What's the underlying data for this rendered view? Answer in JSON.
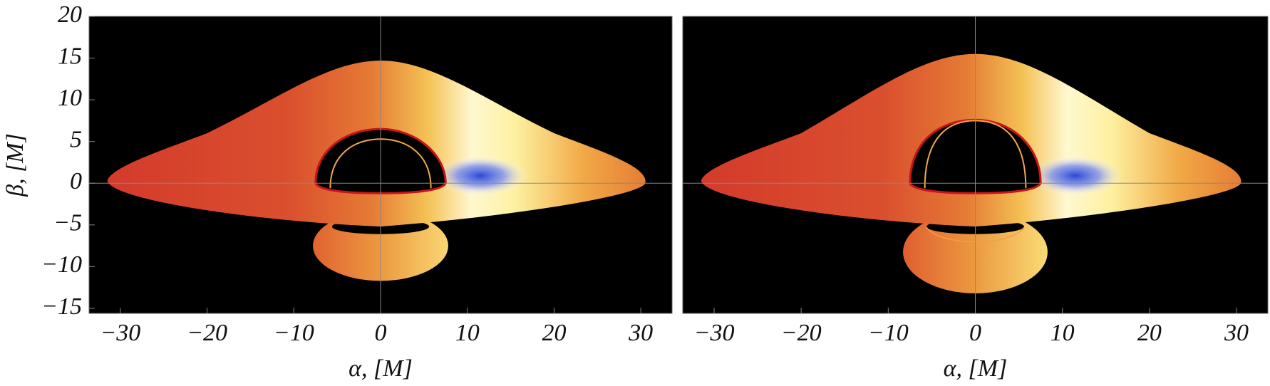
{
  "chart_data": [
    {
      "type": "image",
      "xlabel": "α, [M]",
      "ylabel": "β, [M]",
      "xlim": [
        -33.6,
        33.6
      ],
      "ylim": [
        -15.6,
        20
      ],
      "xticks": [
        {
          "value": -30,
          "label": "−30"
        },
        {
          "value": -20,
          "label": "−20"
        },
        {
          "value": -10,
          "label": "−10"
        },
        0,
        10,
        20,
        30
      ],
      "yticks": [
        {
          "value": -15,
          "label": "−15"
        },
        {
          "value": -10,
          "label": "−10"
        },
        {
          "value": -5,
          "label": "−5"
        },
        0,
        5,
        10,
        15,
        20
      ]
    },
    {
      "type": "image",
      "xlabel": "α, [M]",
      "xlim": [
        -33.6,
        33.6
      ],
      "ylim": [
        -15.6,
        20
      ],
      "xticks": [
        {
          "value": -30,
          "label": "−30"
        },
        {
          "value": -20,
          "label": "−20"
        },
        {
          "value": -10,
          "label": "−10"
        },
        0,
        10,
        20,
        30
      ]
    }
  ]
}
